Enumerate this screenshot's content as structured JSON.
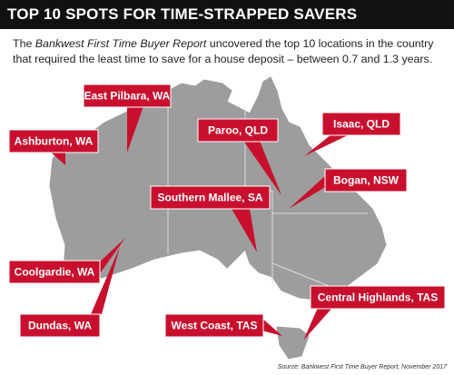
{
  "header": {
    "title": "TOP 10 SPOTS FOR TIME-STRAPPED SAVERS"
  },
  "intro": {
    "before": "The ",
    "emphasis": "Bankwest First Time Buyer Report",
    "after": " uncovered the top 10 locations in the country that required the least time to save for a house deposit – between 0.7 and 1.3 years."
  },
  "labels": [
    {
      "text": "East Pilbara, WA"
    },
    {
      "text": "Ashburton, WA"
    },
    {
      "text": "Paroo, QLD"
    },
    {
      "text": "Isaac, QLD"
    },
    {
      "text": "Bogan, NSW"
    },
    {
      "text": "Southern Mallee, SA"
    },
    {
      "text": "Coolgardie, WA"
    },
    {
      "text": "Dundas, WA"
    },
    {
      "text": "Central Highlands, TAS"
    },
    {
      "text": "West Coast, TAS"
    }
  ],
  "source": "Source: Bankwest First Time Buyer Report, November 2017"
}
